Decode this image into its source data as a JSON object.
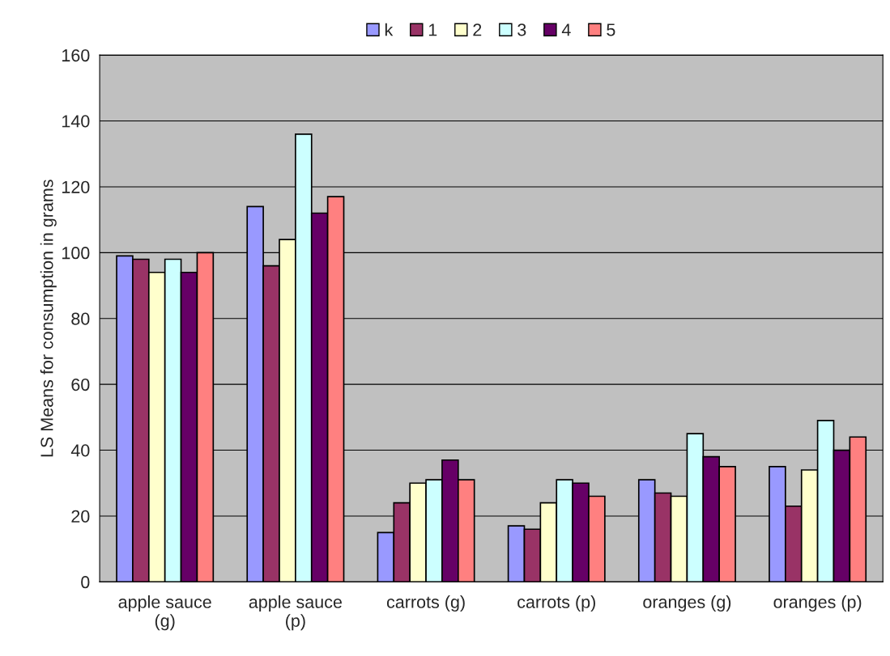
{
  "chart_data": {
    "type": "bar",
    "ylabel": "LS Means for consumption in grams",
    "categories": [
      "apple sauce (g)",
      "apple sauce (p)",
      "carrots (g)",
      "carrots (p)",
      "oranges (g)",
      "oranges (p)"
    ],
    "series": [
      {
        "name": "k",
        "color": "#9999ff",
        "values": [
          99,
          114,
          15,
          17,
          31,
          35
        ]
      },
      {
        "name": "1",
        "color": "#993366",
        "values": [
          98,
          96,
          24,
          16,
          27,
          23
        ]
      },
      {
        "name": "2",
        "color": "#ffffcc",
        "values": [
          94,
          104,
          30,
          24,
          26,
          34
        ]
      },
      {
        "name": "3",
        "color": "#ccffff",
        "values": [
          98,
          136,
          31,
          31,
          45,
          49
        ]
      },
      {
        "name": "4",
        "color": "#660066",
        "values": [
          94,
          112,
          37,
          30,
          38,
          40
        ]
      },
      {
        "name": "5",
        "color": "#ff8080",
        "values": [
          100,
          117,
          31,
          26,
          35,
          44
        ]
      }
    ],
    "ylim": [
      0,
      160
    ],
    "yticks": [
      0,
      20,
      40,
      60,
      80,
      100,
      120,
      140,
      160
    ],
    "grid": "y",
    "legend": "top"
  }
}
